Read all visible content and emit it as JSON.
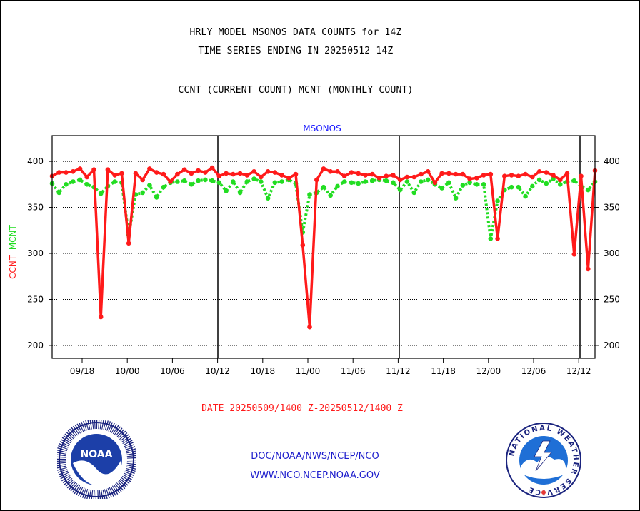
{
  "titles": {
    "line1": "HRLY MODEL MSONOS DATA COUNTS for 14Z",
    "line2": "TIME SERIES ENDING IN 20250512 14Z",
    "line3": "CCNT (CURRENT COUNT) MCNT (MONTHLY COUNT)"
  },
  "ylabel_ccnt": "CCNT",
  "ylabel_mcnt": "MCNT",
  "date_range": "DATE 20250509/1400 Z-20250512/1400 Z",
  "footer": {
    "line1": "DOC/NOAA/NWS/NCEP/NCO",
    "line2": "WWW.NCO.NCEP.NOAA.GOV"
  },
  "logos": {
    "noaa_text": "NOAA",
    "nws_ring_text": "NATIONAL WEATHER SERVICE"
  },
  "colors": {
    "ccnt": "#ff1a1a",
    "mcnt": "#22dd22",
    "title_inner": "#1a1aff",
    "date": "#ff1a1a",
    "footer": "#1a1acc"
  },
  "chart_data": {
    "type": "line",
    "title": "MSONOS",
    "xlabel": "",
    "ylabel": "CCNT  MCNT",
    "x_tick_labels": [
      "09/18",
      "10/00",
      "10/06",
      "10/12",
      "10/18",
      "11/00",
      "11/06",
      "11/12",
      "11/18",
      "12/00",
      "12/06",
      "12/12"
    ],
    "ylim": [
      186,
      428
    ],
    "yticks": [
      200,
      250,
      300,
      350,
      400
    ],
    "grid": "horizontal dotted",
    "day_separators": [
      "10/12",
      "11/12",
      "12/14"
    ],
    "series": [
      {
        "name": "CCNT",
        "values": [
          384,
          388,
          388,
          389,
          392,
          383,
          391,
          231,
          391,
          385,
          387,
          311,
          387,
          380,
          392,
          388,
          386,
          378,
          386,
          391,
          387,
          390,
          388,
          393,
          384,
          387,
          386,
          387,
          385,
          389,
          383,
          389,
          388,
          385,
          382,
          386,
          309,
          220,
          380,
          392,
          389,
          389,
          384,
          388,
          387,
          385,
          386,
          382,
          384,
          385,
          380,
          383,
          383,
          386,
          389,
          377,
          387,
          387,
          386,
          386,
          381,
          382,
          385,
          386,
          316,
          384,
          385,
          384,
          386,
          383,
          389,
          388,
          385,
          380,
          387,
          299,
          384,
          283,
          390
        ]
      },
      {
        "name": "MCNT",
        "values": [
          376,
          366,
          375,
          378,
          380,
          375,
          372,
          365,
          373,
          378,
          377,
          320,
          364,
          366,
          374,
          361,
          372,
          377,
          378,
          379,
          375,
          379,
          380,
          379,
          377,
          368,
          378,
          366,
          378,
          381,
          378,
          360,
          377,
          378,
          380,
          376,
          323,
          364,
          366,
          372,
          363,
          373,
          378,
          377,
          376,
          378,
          379,
          380,
          379,
          377,
          369,
          378,
          366,
          378,
          380,
          375,
          371,
          377,
          360,
          374,
          377,
          375,
          375,
          316,
          357,
          369,
          372,
          372,
          362,
          373,
          380,
          376,
          381,
          375,
          378,
          379,
          373,
          369,
          378
        ]
      }
    ]
  }
}
